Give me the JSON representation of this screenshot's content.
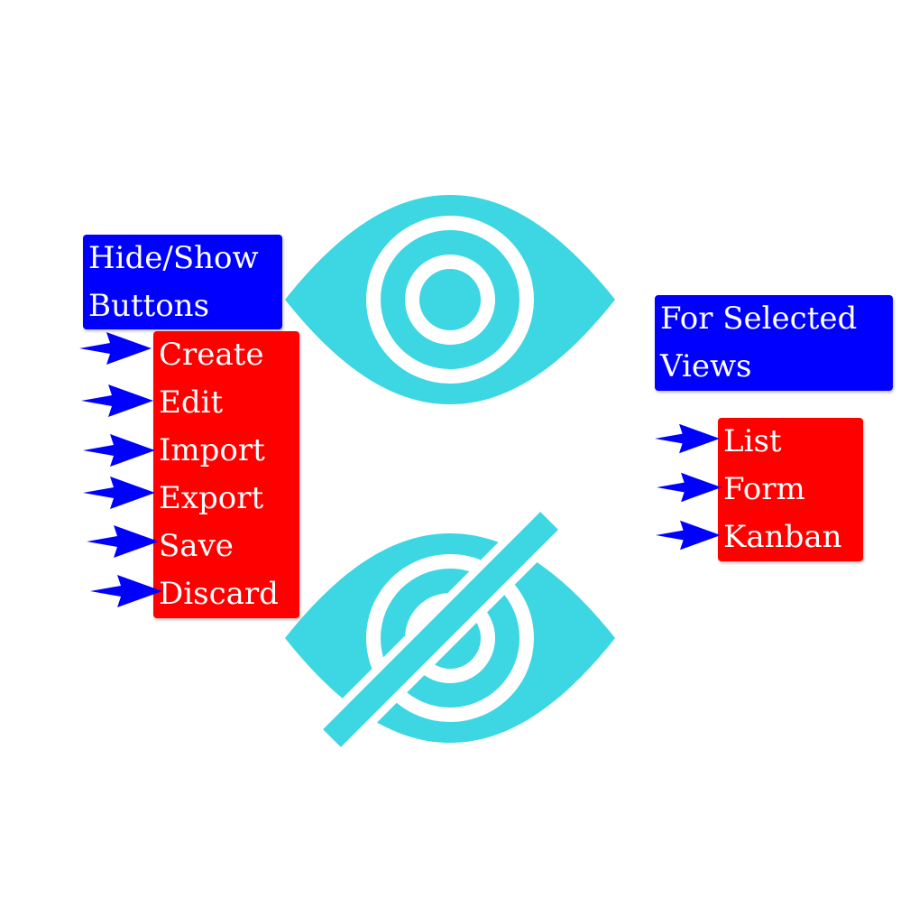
{
  "left_panel": {
    "title_lines": [
      "Hide/Show",
      "Buttons"
    ],
    "items": [
      "Create",
      "Edit",
      "Import",
      "Export",
      "Save",
      "Discard"
    ]
  },
  "right_panel": {
    "title_lines": [
      "For Selected",
      "Views"
    ],
    "items": [
      "List",
      "Form",
      "Kanban"
    ]
  },
  "colors": {
    "title_box": "#0000ff",
    "item_box": "#ff0000",
    "arrow": "#0000ff",
    "eye": "#3dd6e3",
    "text": "#ffffff"
  },
  "icons": {
    "show": "eye-icon",
    "hide": "eye-slash-icon",
    "pointer": "arrow-right-icon"
  }
}
